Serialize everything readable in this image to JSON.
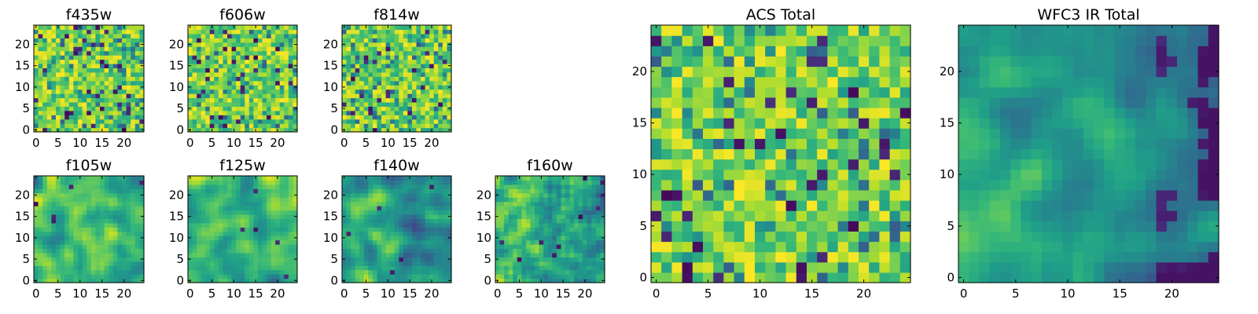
{
  "chart_data": [
    {
      "type": "heatmap",
      "title": "f435w",
      "xticks": [
        0,
        5,
        10,
        15,
        20
      ],
      "yticks": [
        0,
        5,
        10,
        15,
        20
      ],
      "grid_size": [
        25,
        25
      ],
      "xlim": [
        -0.5,
        24.5
      ],
      "ylim": [
        -0.5,
        24.5
      ],
      "colormap": "viridis",
      "pattern": "fine pixel noise, mostly green-yellow with scattered dark-blue pixels"
    },
    {
      "type": "heatmap",
      "title": "f606w",
      "xticks": [
        0,
        5,
        10,
        15,
        20
      ],
      "yticks": [
        0,
        5,
        10,
        15,
        20
      ],
      "grid_size": [
        25,
        25
      ],
      "xlim": [
        -0.5,
        24.5
      ],
      "ylim": [
        -0.5,
        24.5
      ],
      "colormap": "viridis",
      "pattern": "fine pixel noise, mostly green-yellow with scattered dark-blue pixels"
    },
    {
      "type": "heatmap",
      "title": "f814w",
      "xticks": [
        0,
        5,
        10,
        15,
        20
      ],
      "yticks": [
        0,
        5,
        10,
        15,
        20
      ],
      "grid_size": [
        25,
        25
      ],
      "xlim": [
        -0.5,
        24.5
      ],
      "ylim": [
        -0.5,
        24.5
      ],
      "colormap": "viridis",
      "pattern": "fine pixel noise, mostly green-yellow with scattered dark-blue pixels"
    },
    {
      "type": "heatmap",
      "title": "f105w",
      "xticks": [
        0,
        5,
        10,
        15,
        20
      ],
      "yticks": [
        0,
        5,
        10,
        15,
        20
      ],
      "grid_size": [
        25,
        25
      ],
      "xlim": [
        -0.5,
        24.5
      ],
      "ylim": [
        -0.5,
        24.5
      ],
      "colormap": "viridis",
      "pattern": "smooth blotches, yellow-green, few dark spots"
    },
    {
      "type": "heatmap",
      "title": "f125w",
      "xticks": [
        0,
        5,
        10,
        15,
        20
      ],
      "yticks": [
        0,
        5,
        10,
        15,
        20
      ],
      "grid_size": [
        25,
        25
      ],
      "xlim": [
        -0.5,
        24.5
      ],
      "ylim": [
        -0.5,
        24.5
      ],
      "colormap": "viridis",
      "pattern": "smooth blotches, yellow-green, few dark spots"
    },
    {
      "type": "heatmap",
      "title": "f140w",
      "xticks": [
        0,
        5,
        10,
        15,
        20
      ],
      "yticks": [
        0,
        5,
        10,
        15,
        20
      ],
      "grid_size": [
        25,
        25
      ],
      "xlim": [
        -0.5,
        24.5
      ],
      "ylim": [
        -0.5,
        24.5
      ],
      "colormap": "viridis",
      "pattern": "smooth blotches, green with darker right side"
    },
    {
      "type": "heatmap",
      "title": "f160w",
      "xticks": [
        0,
        5,
        10,
        15,
        20
      ],
      "yticks": [
        0,
        5,
        10,
        15,
        20
      ],
      "grid_size": [
        25,
        25
      ],
      "xlim": [
        -0.5,
        24.5
      ],
      "ylim": [
        -0.5,
        24.5
      ],
      "colormap": "viridis",
      "pattern": "coarse blocks, green with dark spots on right"
    },
    {
      "type": "heatmap",
      "title": "ACS Total",
      "xticks": [
        0,
        5,
        10,
        15,
        20
      ],
      "yticks": [
        0,
        5,
        10,
        15,
        20
      ],
      "grid_size": [
        25,
        25
      ],
      "xlim": [
        -0.5,
        24.5
      ],
      "ylim": [
        -0.5,
        24.5
      ],
      "colormap": "viridis",
      "pattern": "pixel noise, mostly green-yellow with scattered dark pixels"
    },
    {
      "type": "heatmap",
      "title": "WFC3 IR Total",
      "xticks": [
        0,
        5,
        10,
        15,
        20
      ],
      "yticks": [
        0,
        5,
        10,
        15,
        20
      ],
      "grid_size": [
        25,
        25
      ],
      "xlim": [
        -0.5,
        24.5
      ],
      "ylim": [
        -0.5,
        24.5
      ],
      "colormap": "viridis",
      "pattern": "smooth, yellow on left edge fading to teal and dark blue on right"
    }
  ]
}
